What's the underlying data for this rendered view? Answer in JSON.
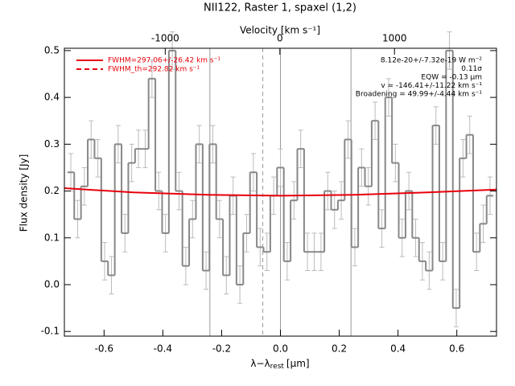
{
  "chart_data": {
    "type": "step",
    "title": "NII122, Raster 1, spaxel (1,2)",
    "xlabel": {
      "main": "λ−λ",
      "sub": "rest",
      "unit": "[μm]"
    },
    "ylabel": "Flux density [Jy]",
    "x2label": "Velocity [km s⁻¹]",
    "xlim": [
      -0.735,
      0.735
    ],
    "ylim": [
      -0.11,
      0.505
    ],
    "x2lim": [
      -1880,
      1890
    ],
    "xticks": [
      -0.6,
      -0.4,
      -0.2,
      {
        "value": 0,
        "label": "0.0"
      },
      0.2,
      0.4,
      0.6
    ],
    "yticks": [
      -0.1,
      {
        "value": 0,
        "label": "0.0"
      },
      0.1,
      0.2,
      0.3,
      0.4,
      0.5
    ],
    "x2ticks": [
      -1000,
      0,
      1000
    ],
    "x": [
      -0.713,
      -0.69,
      -0.667,
      -0.644,
      -0.621,
      -0.598,
      -0.575,
      -0.552,
      -0.529,
      -0.506,
      -0.483,
      -0.46,
      -0.437,
      -0.414,
      -0.391,
      -0.368,
      -0.345,
      -0.322,
      -0.299,
      -0.276,
      -0.253,
      -0.23,
      -0.207,
      -0.184,
      -0.161,
      -0.138,
      -0.115,
      -0.092,
      -0.069,
      -0.046,
      -0.023,
      0.0,
      0.023,
      0.046,
      0.069,
      0.092,
      0.115,
      0.138,
      0.161,
      0.184,
      0.207,
      0.23,
      0.253,
      0.276,
      0.299,
      0.322,
      0.345,
      0.368,
      0.391,
      0.414,
      0.437,
      0.46,
      0.483,
      0.506,
      0.529,
      0.552,
      0.575,
      0.598,
      0.621,
      0.644,
      0.667,
      0.69,
      0.713
    ],
    "values": [
      0.24,
      0.14,
      0.21,
      0.31,
      0.27,
      0.05,
      0.02,
      0.3,
      0.11,
      0.26,
      0.29,
      0.29,
      0.44,
      0.2,
      0.11,
      0.5,
      0.2,
      0.04,
      0.14,
      0.3,
      0.03,
      0.3,
      0.14,
      0.02,
      0.19,
      0.0,
      0.11,
      0.24,
      0.08,
      0.07,
      0.19,
      0.25,
      0.05,
      0.18,
      0.29,
      0.07,
      0.07,
      0.07,
      0.2,
      0.16,
      0.18,
      0.31,
      0.08,
      0.25,
      0.21,
      0.35,
      0.12,
      0.4,
      0.26,
      0.1,
      0.2,
      0.1,
      0.05,
      0.03,
      0.34,
      0.05,
      0.5,
      -0.05,
      0.27,
      0.32,
      0.07,
      0.13,
      0.19
    ],
    "error": 0.04,
    "color": "#888888",
    "error_color": "#bbbbbb",
    "fit": {
      "color": "#e8000b",
      "x": [
        -0.735,
        -0.5,
        -0.25,
        0,
        0.25,
        0.5,
        0.735
      ],
      "values": [
        0.206,
        0.197,
        0.192,
        0.19,
        0.192,
        0.197,
        0.203
      ]
    },
    "vlines": [
      {
        "x": -0.24,
        "dash": false
      },
      {
        "x": -0.06,
        "dash": true
      },
      {
        "x": 0,
        "dash": false
      },
      {
        "x": 0.24,
        "dash": false
      }
    ],
    "legend": [
      {
        "text": "FWHM=297.06+/-26.42 km s⁻¹",
        "dash": false
      },
      {
        "text": "FWHM_th=292.82 km s⁻¹",
        "dash": true
      }
    ],
    "annotations": [
      "8.12e-20+/-7.32e-19 W m⁻²",
      "0.11σ",
      "EQW = -0.13 μm",
      "v = -146.41+/-11.22 km s⁻¹",
      "Broadening = 49.99+/-4.44 km s⁻¹"
    ]
  }
}
